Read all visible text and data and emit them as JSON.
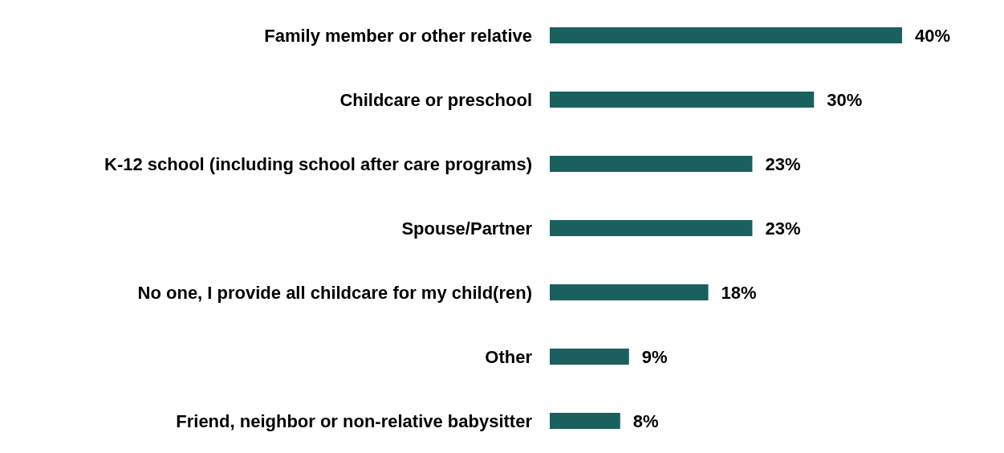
{
  "chart_data": {
    "type": "bar",
    "orientation": "horizontal",
    "categories": [
      "Family member or other relative",
      "Childcare or preschool",
      "K-12 school (including school after care programs)",
      "Spouse/Partner",
      "No one, I provide all childcare for my child(ren)",
      "Other",
      "Friend, neighbor or non-relative babysitter"
    ],
    "values": [
      40,
      30,
      23,
      23,
      18,
      9,
      8
    ],
    "value_labels": [
      "40%",
      "30%",
      "23%",
      "23%",
      "18%",
      "9%",
      "8%"
    ],
    "color": "#1a605e"
  }
}
